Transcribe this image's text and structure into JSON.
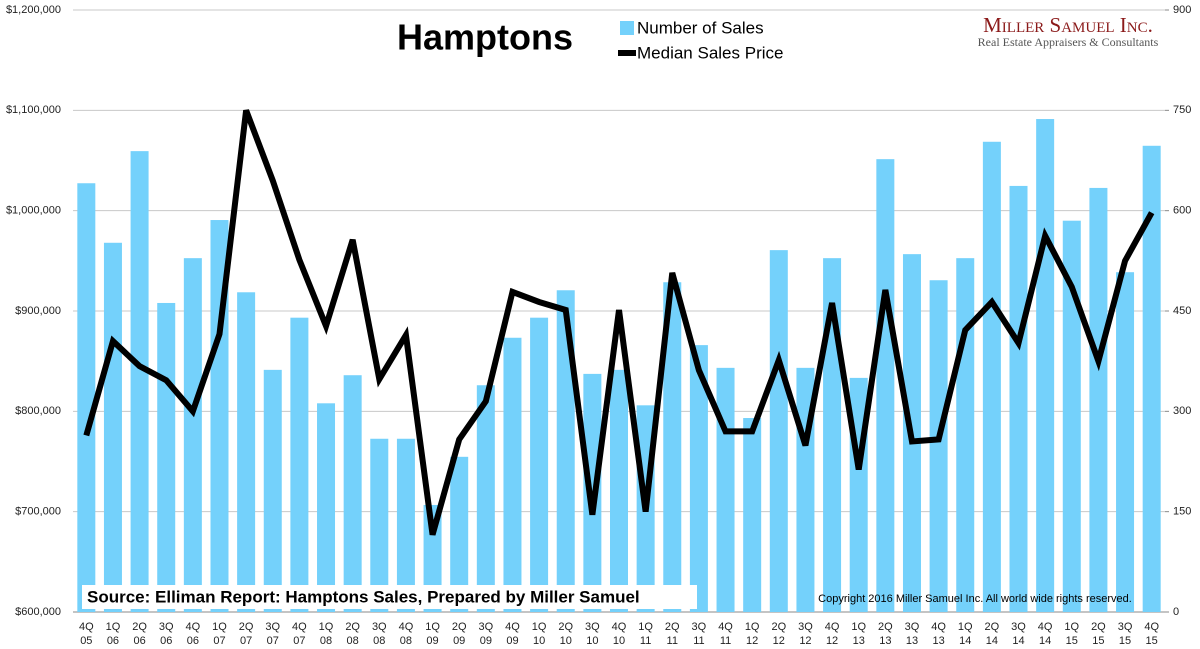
{
  "chart_data": {
    "type": "bar_line",
    "title": "Hamptons",
    "brand": "Miller Samuel Inc.",
    "brand_subtitle": "Real Estate Appraisers & Consultants",
    "source": "Source:  Elliman Report: Hamptons Sales, Prepared by Miller Samuel",
    "copyright": "Copyright 2016 Miller Samuel Inc.  All world wide rights reserved.",
    "categories": [
      [
        "4Q",
        "05"
      ],
      [
        "1Q",
        "06"
      ],
      [
        "2Q",
        "06"
      ],
      [
        "3Q",
        "06"
      ],
      [
        "4Q",
        "06"
      ],
      [
        "1Q",
        "07"
      ],
      [
        "2Q",
        "07"
      ],
      [
        "3Q",
        "07"
      ],
      [
        "4Q",
        "07"
      ],
      [
        "1Q",
        "08"
      ],
      [
        "2Q",
        "08"
      ],
      [
        "3Q",
        "08"
      ],
      [
        "4Q",
        "08"
      ],
      [
        "1Q",
        "09"
      ],
      [
        "2Q",
        "09"
      ],
      [
        "3Q",
        "09"
      ],
      [
        "4Q",
        "09"
      ],
      [
        "1Q",
        "10"
      ],
      [
        "2Q",
        "10"
      ],
      [
        "3Q",
        "10"
      ],
      [
        "4Q",
        "10"
      ],
      [
        "1Q",
        "11"
      ],
      [
        "2Q",
        "11"
      ],
      [
        "3Q",
        "11"
      ],
      [
        "4Q",
        "11"
      ],
      [
        "1Q",
        "12"
      ],
      [
        "2Q",
        "12"
      ],
      [
        "3Q",
        "12"
      ],
      [
        "4Q",
        "12"
      ],
      [
        "1Q",
        "13"
      ],
      [
        "2Q",
        "13"
      ],
      [
        "3Q",
        "13"
      ],
      [
        "4Q",
        "13"
      ],
      [
        "1Q",
        "14"
      ],
      [
        "2Q",
        "14"
      ],
      [
        "3Q",
        "14"
      ],
      [
        "4Q",
        "14"
      ],
      [
        "1Q",
        "15"
      ],
      [
        "2Q",
        "15"
      ],
      [
        "3Q",
        "15"
      ],
      [
        "4Q",
        "15"
      ]
    ],
    "series": [
      {
        "name": "Number of Sales",
        "type": "bar",
        "axis": "y2",
        "color": "#74d1fb",
        "values": [
          641,
          552,
          689,
          462,
          529,
          586,
          478,
          362,
          440,
          312,
          354,
          259,
          259,
          160,
          232,
          339,
          410,
          440,
          481,
          356,
          362,
          309,
          493,
          399,
          365,
          290,
          541,
          365,
          529,
          350,
          677,
          535,
          496,
          529,
          703,
          637,
          737,
          585,
          634,
          508,
          697
        ]
      },
      {
        "name": "Median Sales Price",
        "type": "line",
        "axis": "y",
        "color": "#000000",
        "values": [
          776000,
          870000,
          845000,
          831000,
          800000,
          877000,
          1100000,
          1030000,
          951000,
          885000,
          971000,
          832000,
          876000,
          677000,
          772000,
          810000,
          919000,
          909000,
          901000,
          697000,
          901000,
          700000,
          938000,
          841000,
          780000,
          780000,
          851000,
          766000,
          908000,
          742000,
          921000,
          770000,
          772000,
          881000,
          909000,
          868000,
          975000,
          924000,
          850000,
          950000,
          998000
        ]
      }
    ],
    "ylim": [
      600000,
      1200000
    ],
    "yticks": [
      {
        "value": 600000,
        "label": "$600,000"
      },
      {
        "value": 700000,
        "label": "$700,000"
      },
      {
        "value": 800000,
        "label": "$800,000"
      },
      {
        "value": 900000,
        "label": "$900,000"
      },
      {
        "value": 1000000,
        "label": "$1,000,000"
      },
      {
        "value": 1100000,
        "label": "$1,100,000"
      },
      {
        "value": 1200000,
        "label": "$1,200,000"
      }
    ],
    "y2lim": [
      0,
      900
    ],
    "y2ticks": [
      0,
      150,
      300,
      450,
      600,
      750,
      900
    ],
    "grid": true
  }
}
